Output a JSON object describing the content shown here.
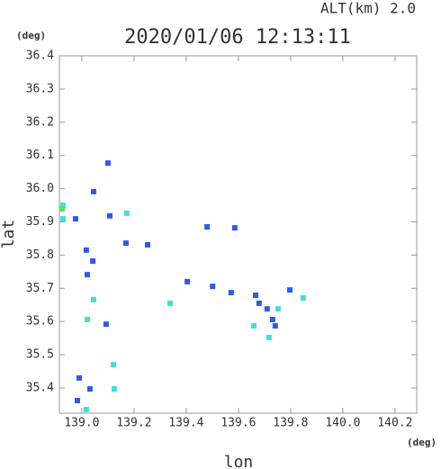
{
  "chart_data": {
    "type": "scatter",
    "subtitle": "ALT(km) 2.0",
    "title": "2020/01/06 12:13:11",
    "y_unit": "(deg)",
    "x_unit": "(deg)",
    "y_label": "lat",
    "x_label": "lon",
    "xlim": [
      138.914,
      140.283
    ],
    "ylim": [
      35.324,
      36.4
    ],
    "xticks": [
      {
        "value": 139,
        "label": "139.0"
      },
      139.2,
      139.4,
      139.6,
      139.8,
      {
        "value": 140,
        "label": "140.0"
      },
      140.2
    ],
    "yticks": [
      35.4,
      35.5,
      35.6,
      35.7,
      35.8,
      35.9,
      {
        "value": 36,
        "label": "36.0"
      },
      36.1,
      36.2,
      36.3,
      36.4
    ],
    "x": [
      138.924,
      138.928,
      138.976,
      139.045,
      139.017,
      139.042,
      139.021,
      139.045,
      139.021,
      139.093,
      139.107,
      139.172,
      139.169,
      139.252,
      139.48,
      139.338,
      139.404,
      139.501,
      139.572,
      139.586,
      139.666,
      139.679,
      139.71,
      139.752,
      139.731,
      139.659,
      139.797,
      139.848,
      138.99,
      138.983,
      139.017,
      139.031,
      139.121,
      139.124,
      139.1,
      138.928,
      139.741,
      139.717
    ],
    "values": [
      35.939,
      35.909,
      35.909,
      35.991,
      35.815,
      35.782,
      35.741,
      35.666,
      35.606,
      35.592,
      35.918,
      35.926,
      35.836,
      35.831,
      35.885,
      35.655,
      35.72,
      35.706,
      35.687,
      35.882,
      35.679,
      35.655,
      35.638,
      35.638,
      35.606,
      35.587,
      35.695,
      35.671,
      35.43,
      35.362,
      35.335,
      35.397,
      35.47,
      35.397,
      36.077,
      35.95,
      35.587,
      35.552
    ],
    "colors": [
      "#5de05d",
      "#3fe0d8",
      "#2d5ae8",
      "#2d5ae8",
      "#2d5ae8",
      "#2d5ae8",
      "#2d5ae8",
      "#3fe0d8",
      "#3fe0d8",
      "#2d5ae8",
      "#2d5ae8",
      "#3fe0d8",
      "#2d5ae8",
      "#2d5ae8",
      "#2d5ae8",
      "#3fe0d8",
      "#2d5ae8",
      "#2d5ae8",
      "#2d5ae8",
      "#2d5ae8",
      "#2d5ae8",
      "#2d5ae8",
      "#2d5ae8",
      "#3fe0d8",
      "#2d5ae8",
      "#3fe0d8",
      "#2d5ae8",
      "#3fe0d8",
      "#2d5ae8",
      "#2d5ae8",
      "#3fe0d8",
      "#2d5ae8",
      "#3fe0d8",
      "#3fe0d8",
      "#2d5ae8",
      "#3fe0d8",
      "#2d5ae8",
      "#3fe0d8"
    ]
  }
}
